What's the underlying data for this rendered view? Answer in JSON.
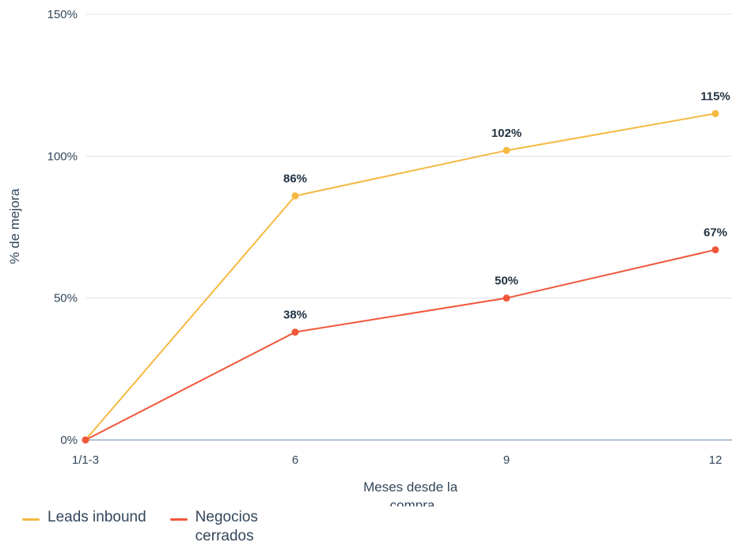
{
  "chart_data": {
    "type": "line",
    "categories": [
      "1/1-3",
      "6",
      "9",
      "12"
    ],
    "series": [
      {
        "name": "Leads inbound",
        "color": "#f5b942",
        "values": [
          0,
          86,
          102,
          115
        ],
        "labels": [
          "",
          "86%",
          "102%",
          "115%"
        ]
      },
      {
        "name": "Negocios cerrados",
        "color": "#f0573a",
        "values": [
          0,
          38,
          50,
          67
        ],
        "labels": [
          "",
          "38%",
          "50%",
          "67%"
        ]
      }
    ],
    "y_ticks": [
      "0%",
      "50%",
      "100%",
      "150%"
    ],
    "ylim": [
      0,
      150
    ],
    "xlabel_lines": [
      "Meses desde la",
      "compra"
    ],
    "ylabel": "% de mejora",
    "grid": true,
    "legend_position": "bottom-left"
  }
}
